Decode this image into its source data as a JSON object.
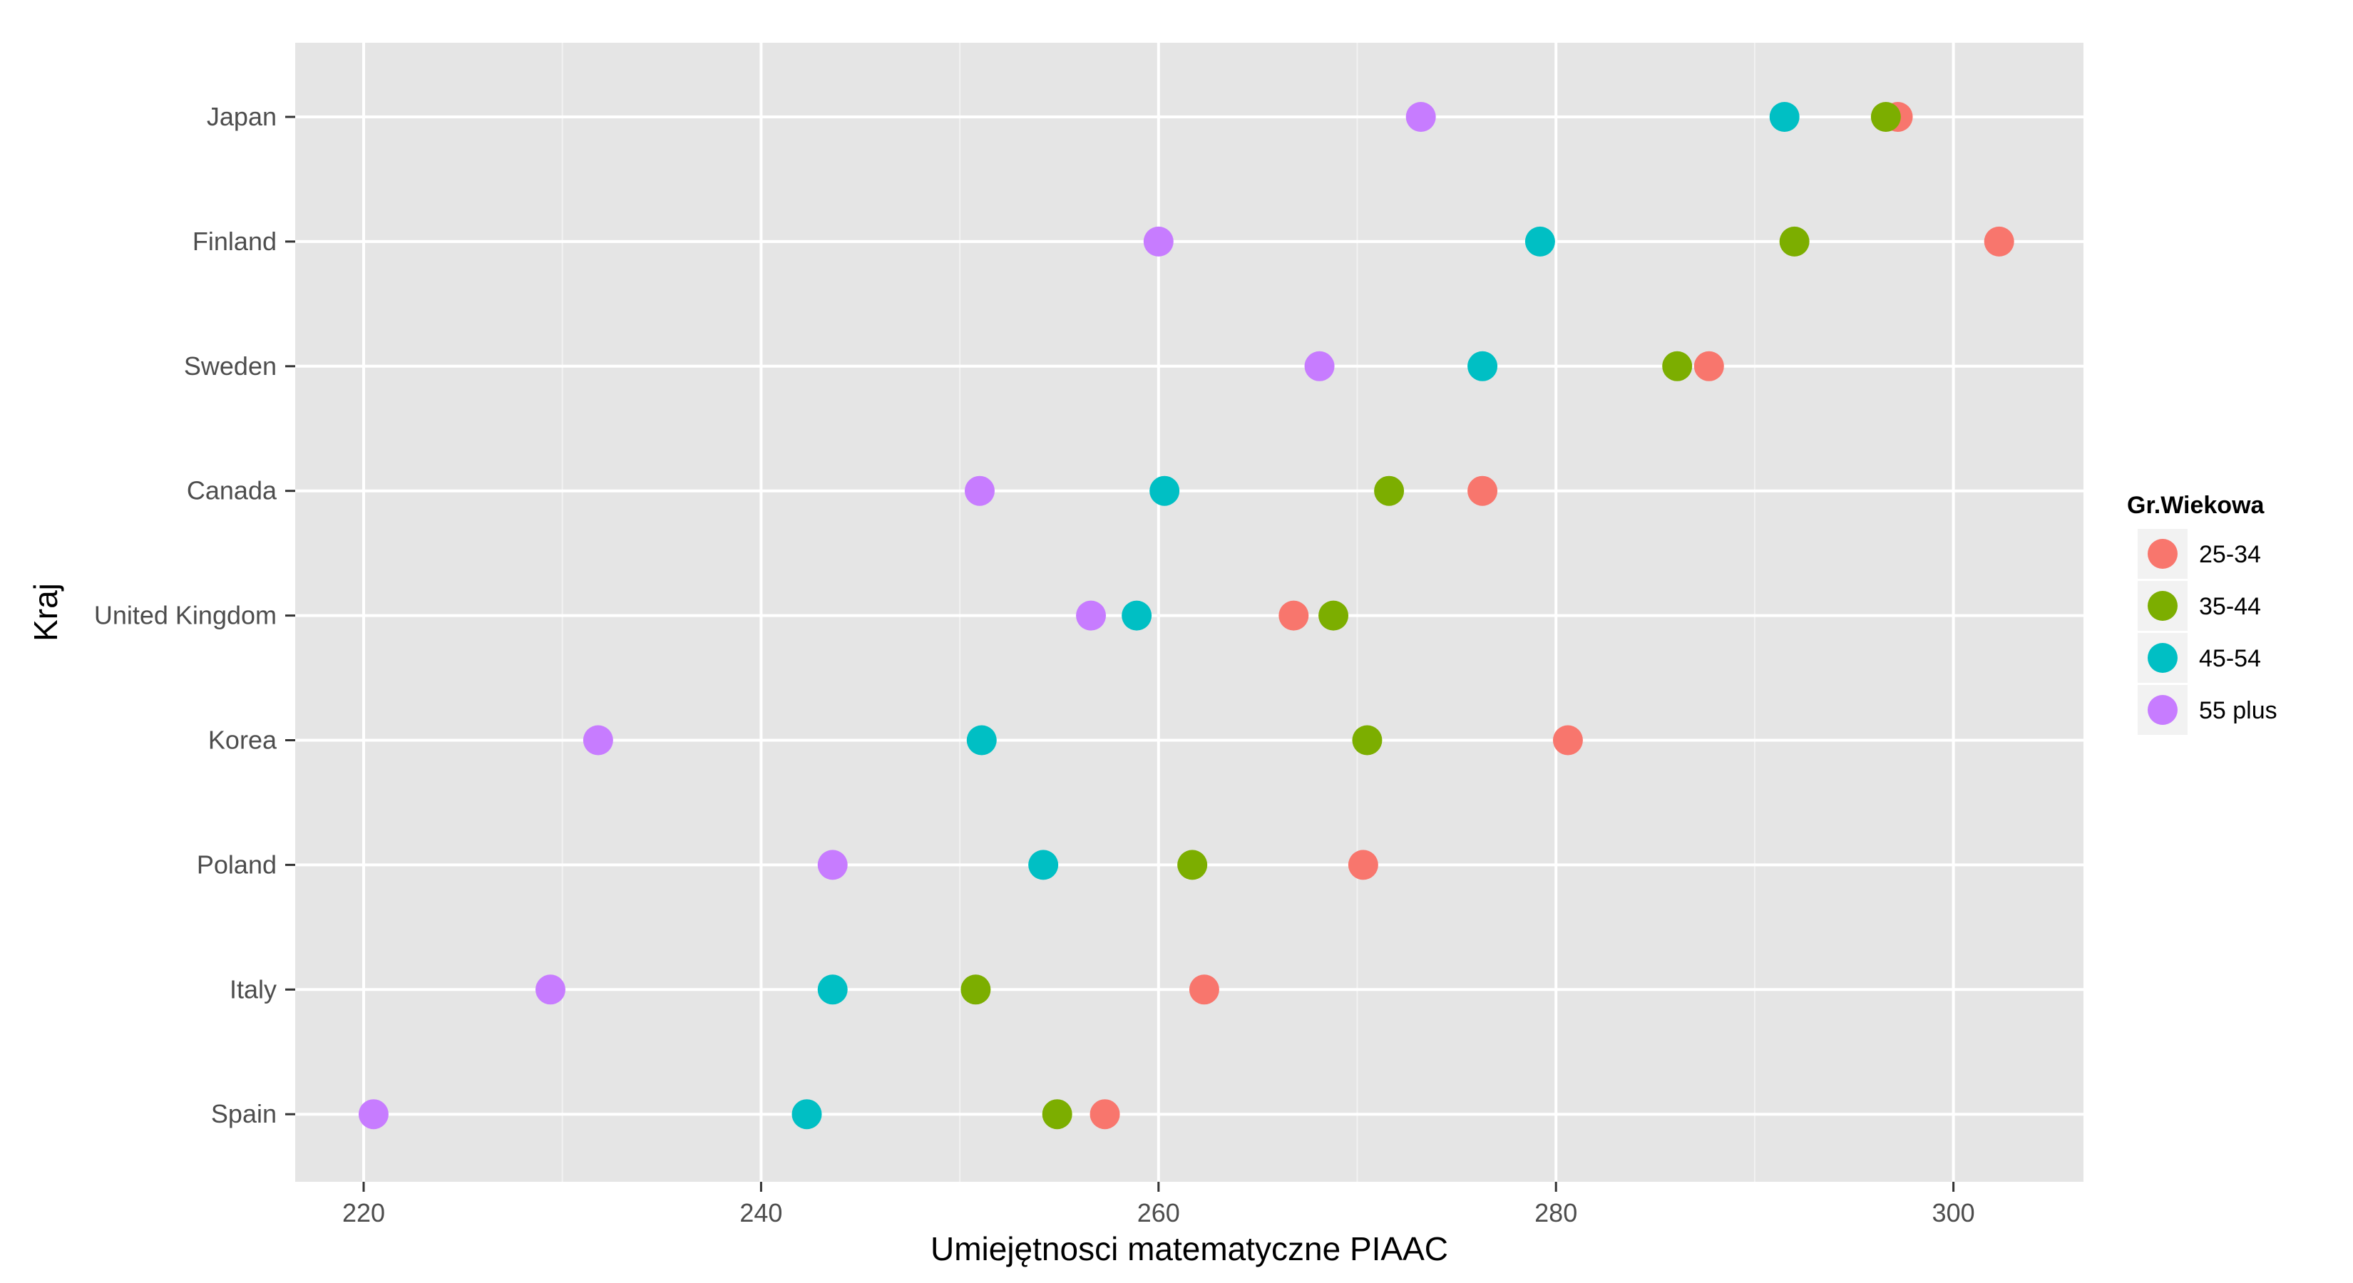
{
  "chart_data": {
    "type": "scatter",
    "title": "",
    "xlabel": "Umiejętnosci matematyczne PIAAC",
    "ylabel": "Kraj",
    "xlim": [
      216.5,
      306.5
    ],
    "x_ticks": [
      220,
      240,
      260,
      280,
      300
    ],
    "categories": [
      "Japan",
      "Finland",
      "Sweden",
      "Canada",
      "United Kingdom",
      "Korea",
      "Poland",
      "Italy",
      "Spain"
    ],
    "grid": true,
    "legend": {
      "title": "Gr.Wiekowa",
      "position": "right"
    },
    "series": [
      {
        "name": "25-34",
        "color": "#F8766D",
        "values": [
          297.2,
          302.3,
          287.7,
          276.3,
          266.8,
          280.6,
          270.3,
          262.3,
          257.3
        ]
      },
      {
        "name": "35-44",
        "color": "#7CAE00",
        "values": [
          296.6,
          292.0,
          286.1,
          271.6,
          268.8,
          270.5,
          261.7,
          250.8,
          254.9
        ]
      },
      {
        "name": "45-54",
        "color": "#00BFC4",
        "values": [
          291.5,
          279.2,
          276.3,
          260.3,
          258.9,
          251.1,
          254.2,
          243.6,
          242.3
        ]
      },
      {
        "name": "55 plus",
        "color": "#C77CFF",
        "values": [
          273.2,
          260.0,
          268.1,
          251.0,
          256.6,
          231.8,
          243.6,
          229.4,
          220.5
        ]
      }
    ]
  }
}
